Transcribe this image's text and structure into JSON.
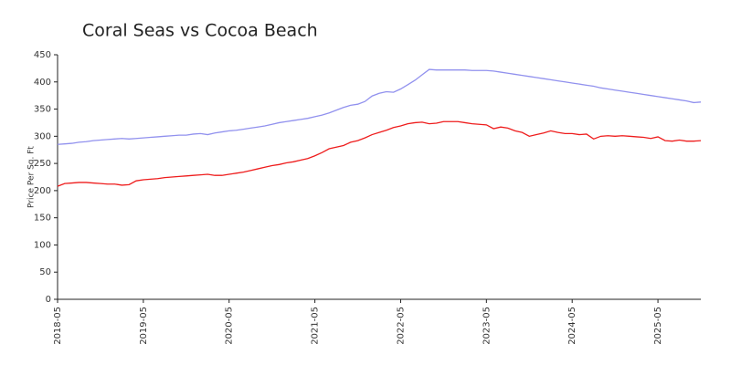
{
  "chart_data": {
    "type": "line",
    "title": "Coral Seas vs Cocoa Beach",
    "y_label": "Price Per Sq. Ft",
    "categories": [
      "2018-05",
      null,
      null,
      null,
      null,
      null,
      null,
      null,
      null,
      null,
      null,
      null,
      "2019-05",
      null,
      null,
      null,
      null,
      null,
      null,
      null,
      null,
      null,
      null,
      null,
      "2020-05",
      null,
      null,
      null,
      null,
      null,
      null,
      null,
      null,
      null,
      null,
      null,
      "2021-05",
      null,
      null,
      null,
      null,
      null,
      null,
      null,
      null,
      null,
      null,
      null,
      "2022-05",
      null,
      null,
      null,
      null,
      null,
      null,
      null,
      null,
      null,
      null,
      null,
      "2023-05",
      null,
      null,
      null,
      null,
      null,
      null,
      null,
      null,
      null,
      null,
      null,
      "2024-05",
      null,
      null,
      null,
      null,
      null,
      null,
      null,
      null,
      null,
      null,
      null,
      "2025-05",
      null,
      null,
      null,
      null,
      null,
      null
    ],
    "series": [
      {
        "color": "#9191ee",
        "values": [
          285,
          286,
          287,
          289,
          290,
          292,
          293,
          294,
          295,
          296,
          295,
          296,
          297,
          298,
          299,
          300,
          301,
          302,
          302,
          304,
          305,
          303,
          306,
          308,
          310,
          311,
          313,
          315,
          317,
          319,
          322,
          325,
          327,
          329,
          331,
          333,
          336,
          339,
          343,
          348,
          353,
          357,
          359,
          364,
          374,
          379,
          382,
          381,
          387,
          395,
          403,
          413,
          423,
          422,
          422,
          422,
          422,
          422,
          421,
          421,
          421,
          420,
          418,
          416,
          414,
          412,
          410,
          408,
          406,
          404,
          402,
          400,
          398,
          396,
          394,
          392,
          389,
          387,
          385,
          383,
          381,
          379,
          377,
          375,
          373,
          371,
          369,
          367,
          365,
          362,
          363
        ]
      },
      {
        "color": "#ee1c1c",
        "values": [
          208,
          213,
          214,
          215,
          215,
          214,
          213,
          212,
          212,
          210,
          211,
          218,
          220,
          221,
          222,
          224,
          225,
          226,
          227,
          228,
          229,
          230,
          228,
          228,
          230,
          232,
          234,
          237,
          240,
          243,
          246,
          248,
          251,
          253,
          256,
          259,
          264,
          270,
          277,
          280,
          283,
          289,
          292,
          297,
          303,
          307,
          311,
          316,
          319,
          323,
          325,
          326,
          323,
          324,
          327,
          327,
          327,
          325,
          323,
          322,
          321,
          314,
          317,
          315,
          310,
          307,
          300,
          303,
          306,
          310,
          307,
          305,
          305,
          303,
          304,
          295,
          300,
          301,
          300,
          301,
          300,
          299,
          298,
          296,
          299,
          292,
          291,
          293,
          291,
          291,
          292
        ]
      }
    ],
    "ylim": [
      0,
      450
    ],
    "yticks": [
      0,
      50,
      100,
      150,
      200,
      250,
      300,
      350,
      400,
      450
    ],
    "grid": false
  }
}
